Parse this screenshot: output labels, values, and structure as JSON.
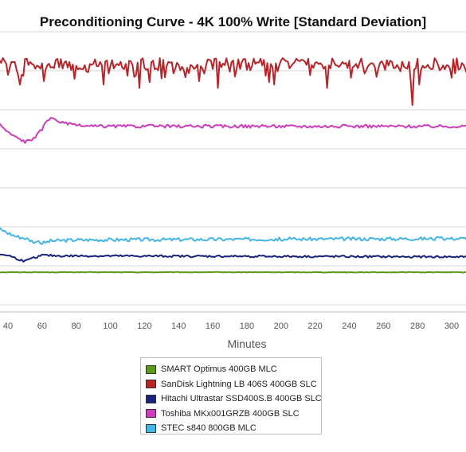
{
  "chart_data": {
    "type": "line",
    "title": "Preconditioning Curve - 4K 100% Write [Standard Deviation]",
    "xlabel": "Minutes",
    "ylabel": "",
    "xlim": [
      30,
      310
    ],
    "ylim": [
      0,
      8
    ],
    "x_ticks": [
      40,
      60,
      80,
      100,
      120,
      140,
      160,
      180,
      200,
      220,
      240,
      260,
      280,
      300
    ],
    "grid": true,
    "legend_position": "bottom",
    "series": [
      {
        "name": "SMART Optimus 400GB MLC",
        "color": "#5a9a1a",
        "base": 1.0,
        "noise": 0.008,
        "mode": "flat",
        "points": [
          [
            30,
            1.0
          ],
          [
            310,
            1.0
          ]
        ]
      },
      {
        "name": "SanDisk Lightning LB 406S 400GB SLC",
        "color": "#b5262b",
        "base": 7.1,
        "noise": 0.18,
        "mode": "spiky",
        "dips": [
          [
            31,
            6.4
          ],
          [
            34,
            6.7
          ],
          [
            47,
            6.5
          ],
          [
            61,
            6.6
          ],
          [
            96,
            6.5
          ],
          [
            117,
            6.4
          ],
          [
            152,
            6.6
          ],
          [
            163,
            6.4
          ],
          [
            196,
            6.5
          ],
          [
            227,
            6.4
          ],
          [
            241,
            6.7
          ],
          [
            276,
            6.6
          ],
          [
            277,
            5.9
          ],
          [
            281,
            6.5
          ],
          [
            300,
            6.7
          ]
        ],
        "points": [
          [
            30,
            7.1
          ],
          [
            310,
            7.1
          ]
        ]
      },
      {
        "name": "Hitachi Ultrastar SSD400S.B 400GB SLC",
        "color": "#1a237a",
        "base": 1.45,
        "noise": 0.03,
        "mode": "noisy",
        "points": [
          [
            30,
            1.55
          ],
          [
            40,
            1.5
          ],
          [
            45,
            1.4
          ],
          [
            50,
            1.32
          ],
          [
            55,
            1.42
          ],
          [
            60,
            1.5
          ],
          [
            70,
            1.48
          ],
          [
            310,
            1.45
          ]
        ]
      },
      {
        "name": "Toshiba MKx001GRZB 400GB SLC",
        "color": "#cc3dbd",
        "base": 5.3,
        "noise": 0.045,
        "mode": "noisy",
        "points": [
          [
            30,
            5.55
          ],
          [
            35,
            5.35
          ],
          [
            40,
            5.1
          ],
          [
            45,
            4.95
          ],
          [
            50,
            4.83
          ],
          [
            55,
            4.9
          ],
          [
            60,
            5.2
          ],
          [
            63,
            5.47
          ],
          [
            67,
            5.5
          ],
          [
            72,
            5.38
          ],
          [
            80,
            5.3
          ],
          [
            90,
            5.28
          ],
          [
            310,
            5.28
          ]
        ]
      },
      {
        "name": "STEC s840 800GB MLC",
        "color": "#45b5e5",
        "base": 1.98,
        "noise": 0.05,
        "mode": "noisy",
        "points": [
          [
            30,
            2.3
          ],
          [
            35,
            2.28
          ],
          [
            40,
            2.15
          ],
          [
            45,
            2.05
          ],
          [
            50,
            2.0
          ],
          [
            55,
            1.9
          ],
          [
            60,
            1.85
          ],
          [
            65,
            1.92
          ],
          [
            80,
            1.95
          ],
          [
            310,
            1.99
          ]
        ]
      }
    ]
  }
}
